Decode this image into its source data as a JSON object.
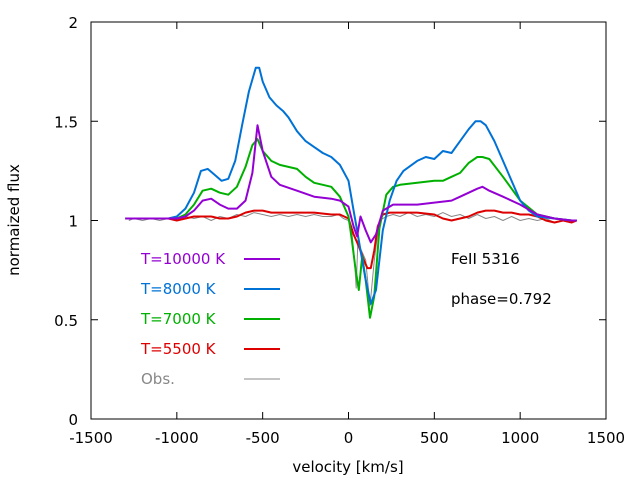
{
  "chart_data": {
    "type": "line",
    "title": "",
    "xlabel": "velocity [km/s]",
    "ylabel": "normaized flux",
    "xlim": [
      -1500,
      1500
    ],
    "ylim": [
      0,
      2
    ],
    "xticks": [
      -1500,
      -1000,
      -500,
      0,
      500,
      1000,
      1500
    ],
    "xtick_labels": [
      "-1500",
      "-1000",
      "-500",
      "0",
      "500",
      "1000",
      "1500"
    ],
    "yticks": [
      0,
      0.5,
      1,
      1.5,
      2
    ],
    "ytick_labels": [
      "0",
      "0.5",
      "1",
      "1.5",
      "2"
    ],
    "grid": false,
    "legend_position": "left",
    "annotations": [
      "FeII 5316",
      "phase=0.792"
    ],
    "series": [
      {
        "name": "T=10000 K",
        "color": "#9400d3",
        "x": [
          -1300,
          -1000,
          -950,
          -900,
          -850,
          -800,
          -750,
          -700,
          -650,
          -600,
          -560,
          -530,
          -500,
          -450,
          -400,
          -300,
          -200,
          -100,
          -50,
          0,
          30,
          50,
          70,
          100,
          130,
          160,
          200,
          260,
          300,
          400,
          500,
          600,
          650,
          700,
          750,
          780,
          820,
          900,
          1000,
          1100,
          1200,
          1300,
          1330
        ],
        "values": [
          1.01,
          1.01,
          1.02,
          1.05,
          1.1,
          1.11,
          1.08,
          1.06,
          1.06,
          1.1,
          1.24,
          1.48,
          1.35,
          1.22,
          1.18,
          1.15,
          1.12,
          1.11,
          1.1,
          1.07,
          0.97,
          0.92,
          1.02,
          0.95,
          0.89,
          0.93,
          1.05,
          1.08,
          1.08,
          1.08,
          1.09,
          1.1,
          1.12,
          1.14,
          1.16,
          1.17,
          1.15,
          1.12,
          1.08,
          1.03,
          1.01,
          1.0,
          1.0
        ]
      },
      {
        "name": "T=8000 K",
        "color": "#0072d6",
        "x": [
          -1300,
          -1050,
          -1000,
          -950,
          -900,
          -860,
          -820,
          -780,
          -740,
          -700,
          -660,
          -620,
          -580,
          -540,
          -520,
          -500,
          -460,
          -420,
          -380,
          -350,
          -300,
          -250,
          -200,
          -150,
          -100,
          -50,
          0,
          30,
          50,
          70,
          100,
          130,
          160,
          200,
          240,
          280,
          320,
          400,
          450,
          500,
          550,
          600,
          650,
          700,
          740,
          770,
          800,
          850,
          900,
          950,
          1000,
          1050,
          1100,
          1200,
          1300,
          1330
        ],
        "values": [
          1.01,
          1.01,
          1.02,
          1.06,
          1.14,
          1.25,
          1.26,
          1.23,
          1.2,
          1.21,
          1.3,
          1.48,
          1.65,
          1.77,
          1.77,
          1.7,
          1.62,
          1.58,
          1.55,
          1.52,
          1.45,
          1.4,
          1.37,
          1.34,
          1.32,
          1.28,
          1.2,
          1.05,
          0.95,
          0.85,
          0.7,
          0.58,
          0.65,
          0.95,
          1.1,
          1.2,
          1.25,
          1.3,
          1.32,
          1.31,
          1.35,
          1.34,
          1.4,
          1.46,
          1.5,
          1.5,
          1.48,
          1.4,
          1.3,
          1.2,
          1.1,
          1.05,
          1.02,
          1.01,
          1.0,
          1.0
        ]
      },
      {
        "name": "T=7000 K",
        "color": "#00b000",
        "x": [
          -1300,
          -1000,
          -950,
          -900,
          -850,
          -800,
          -750,
          -700,
          -650,
          -600,
          -560,
          -530,
          -500,
          -450,
          -400,
          -350,
          -300,
          -250,
          -200,
          -150,
          -100,
          -50,
          0,
          20,
          40,
          60,
          80,
          100,
          125,
          150,
          180,
          220,
          260,
          300,
          400,
          500,
          550,
          600,
          650,
          700,
          750,
          780,
          820,
          900,
          1000,
          1100,
          1200,
          1300,
          1330
        ],
        "values": [
          1.01,
          1.01,
          1.03,
          1.08,
          1.15,
          1.16,
          1.14,
          1.13,
          1.17,
          1.27,
          1.38,
          1.41,
          1.35,
          1.3,
          1.28,
          1.27,
          1.26,
          1.22,
          1.19,
          1.18,
          1.17,
          1.12,
          1.02,
          0.9,
          0.76,
          0.65,
          0.82,
          0.7,
          0.51,
          0.62,
          0.96,
          1.13,
          1.17,
          1.18,
          1.19,
          1.2,
          1.2,
          1.22,
          1.24,
          1.29,
          1.32,
          1.32,
          1.31,
          1.22,
          1.1,
          1.03,
          1.01,
          1.0,
          1.0
        ]
      },
      {
        "name": "T=5500 K",
        "color": "#dd0000",
        "x": [
          -1300,
          -1050,
          -1000,
          -950,
          -900,
          -850,
          -800,
          -750,
          -700,
          -650,
          -600,
          -550,
          -500,
          -450,
          -400,
          -300,
          -200,
          -100,
          -50,
          0,
          30,
          60,
          90,
          110,
          130,
          150,
          170,
          200,
          240,
          300,
          400,
          500,
          550,
          600,
          650,
          700,
          750,
          800,
          850,
          900,
          950,
          1000,
          1050,
          1100,
          1150,
          1200,
          1250,
          1300,
          1330
        ],
        "values": [
          1.01,
          1.01,
          1.0,
          1.01,
          1.02,
          1.02,
          1.02,
          1.01,
          1.01,
          1.02,
          1.04,
          1.05,
          1.05,
          1.04,
          1.04,
          1.04,
          1.04,
          1.03,
          1.03,
          1.01,
          0.93,
          0.87,
          0.8,
          0.76,
          0.76,
          0.85,
          0.97,
          1.03,
          1.04,
          1.04,
          1.04,
          1.03,
          1.01,
          1.0,
          1.01,
          1.02,
          1.04,
          1.05,
          1.05,
          1.04,
          1.04,
          1.03,
          1.03,
          1.02,
          1.0,
          0.99,
          1.0,
          0.99,
          1.0
        ]
      },
      {
        "name": "Obs.",
        "color": "#888888",
        "x": [
          -1280,
          -1250,
          -1200,
          -1150,
          -1100,
          -1050,
          -1000,
          -950,
          -900,
          -850,
          -800,
          -750,
          -700,
          -650,
          -600,
          -550,
          -500,
          -450,
          -400,
          -350,
          -300,
          -250,
          -200,
          -150,
          -100,
          -60,
          -30,
          0,
          20,
          35,
          45,
          55,
          70,
          100,
          125,
          150,
          180,
          220,
          260,
          300,
          350,
          400,
          450,
          500,
          550,
          600,
          650,
          700,
          750,
          800,
          850,
          900,
          950,
          1000,
          1050,
          1100,
          1150,
          1200,
          1250,
          1300,
          1330
        ],
        "values": [
          1.0,
          1.01,
          1.0,
          1.01,
          1.0,
          1.01,
          1.0,
          1.02,
          1.01,
          1.02,
          1.0,
          1.02,
          1.01,
          1.03,
          1.02,
          1.04,
          1.03,
          1.02,
          1.03,
          1.02,
          1.03,
          1.02,
          1.03,
          1.02,
          1.02,
          1.03,
          1.01,
          1.0,
          0.94,
          0.8,
          0.66,
          0.9,
          0.86,
          0.8,
          0.57,
          0.8,
          1.0,
          1.02,
          1.03,
          1.02,
          1.04,
          1.02,
          1.03,
          1.02,
          1.04,
          1.02,
          1.03,
          1.01,
          1.03,
          1.01,
          1.02,
          1.0,
          1.02,
          1.0,
          1.01,
          1.0,
          1.01,
          0.99,
          1.0,
          0.99,
          1.0
        ]
      }
    ]
  }
}
